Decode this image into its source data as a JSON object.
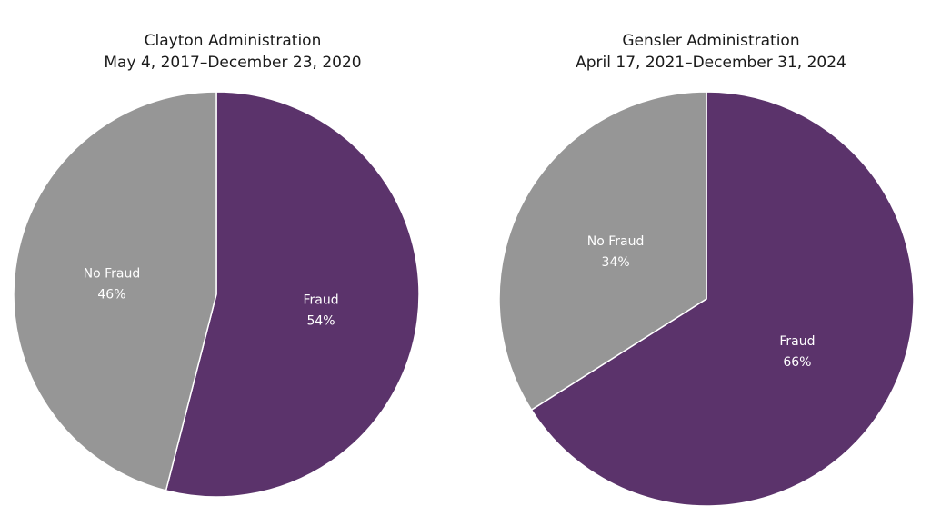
{
  "chart_data": [
    {
      "type": "pie",
      "title": "Clayton Administration",
      "subtitle": "May 4, 2017–December 23, 2020",
      "slices": [
        {
          "label": "Fraud",
          "value": 54,
          "value_label": "54%",
          "color": "#5b336b"
        },
        {
          "label": "No Fraud",
          "value": 46,
          "value_label": "46%",
          "color": "#969696"
        }
      ],
      "start": "12 o'clock",
      "direction": "clockwise"
    },
    {
      "type": "pie",
      "title": "Gensler Administration",
      "subtitle": "April 17, 2021–December 31, 2024",
      "slices": [
        {
          "label": "Fraud",
          "value": 66,
          "value_label": "66%",
          "color": "#5b336b"
        },
        {
          "label": "No Fraud",
          "value": 34,
          "value_label": "34%",
          "color": "#969696"
        }
      ],
      "start": "12 o'clock",
      "direction": "clockwise"
    }
  ]
}
